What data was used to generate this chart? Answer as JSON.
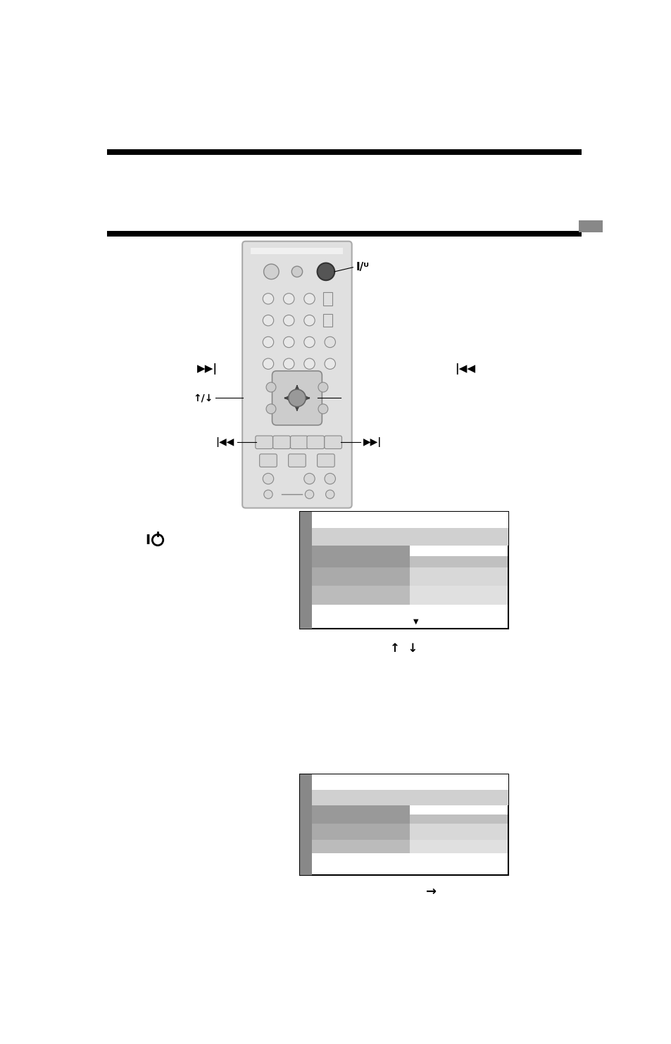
{
  "page_bg": "#ffffff",
  "top_bar_color": "#000000",
  "second_bar_color": "#000000",
  "gray_tab_color": "#888888",
  "remote_bg": "#e8e8e8",
  "remote_border": "#aaaaaa"
}
